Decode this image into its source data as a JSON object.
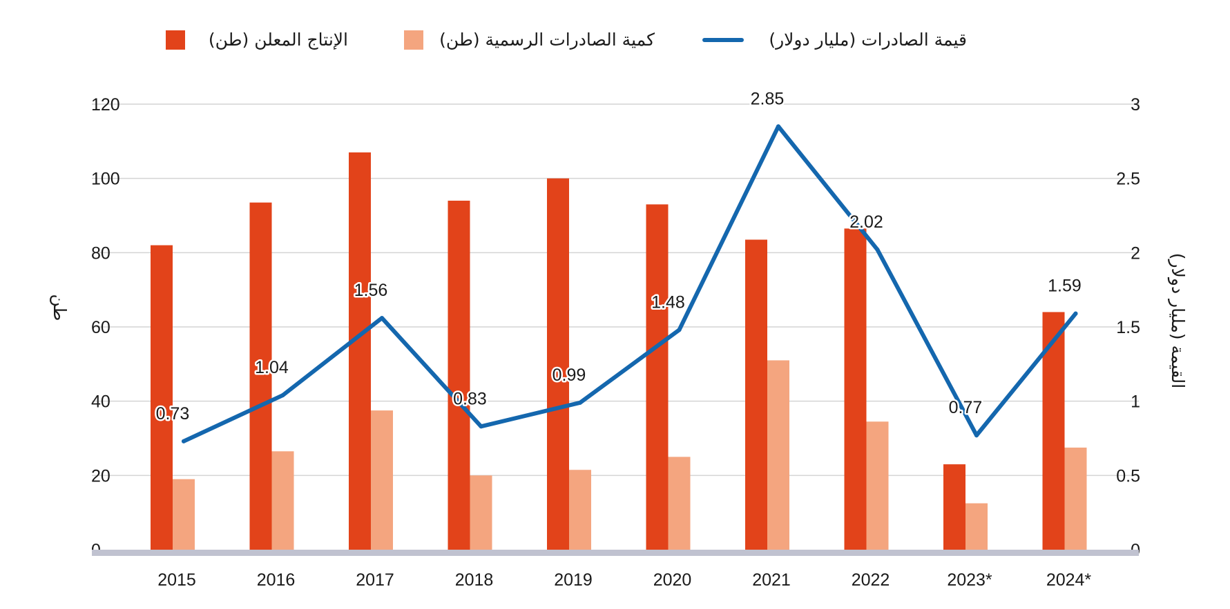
{
  "chart_data": {
    "type": "bar",
    "categories": [
      "2015",
      "2016",
      "2017",
      "2018",
      "2019",
      "2020",
      "2021",
      "2022",
      "2023*",
      "2024*"
    ],
    "series": [
      {
        "name": "الإنتاج المعلن (طن)",
        "type": "bar",
        "axis": "left",
        "color": "#e2431a",
        "values": [
          82,
          93.5,
          107,
          94,
          100,
          93,
          83.5,
          86.5,
          23,
          64
        ]
      },
      {
        "name": "كمية الصادرات الرسمية (طن)",
        "type": "bar",
        "axis": "left",
        "color": "#f4a57f",
        "values": [
          19,
          26.5,
          37.5,
          20,
          21.5,
          25,
          51,
          34.5,
          12.5,
          27.5
        ]
      },
      {
        "name": "قيمة الصادرات (مليار دولار)",
        "type": "line",
        "axis": "right",
        "color": "#1467ae",
        "values": [
          0.73,
          1.04,
          1.56,
          0.83,
          0.99,
          1.48,
          2.85,
          2.02,
          0.77,
          1.59
        ],
        "labels": [
          "0.73",
          "1.04",
          "1.56",
          "0.83",
          "0.99",
          "1.48",
          "2.85",
          "2.02",
          "0.77",
          "1.59"
        ]
      }
    ],
    "y_left": {
      "label": "طن",
      "range": [
        0,
        120
      ],
      "ticks": [
        0,
        20,
        40,
        60,
        80,
        100,
        120
      ],
      "tick_labels": [
        "0",
        "20",
        "40",
        "60",
        "80",
        "100",
        "120"
      ]
    },
    "y_right": {
      "label": "القيمة (مليار دولار)",
      "range": [
        0,
        3
      ],
      "ticks": [
        0,
        0.5,
        1,
        1.5,
        2,
        2.5,
        3
      ],
      "tick_labels": [
        "0",
        "0.5",
        "1",
        "1.5",
        "2",
        "2.5",
        "3"
      ]
    },
    "grid": true,
    "legend_position": "top"
  },
  "legend": {
    "production": "الإنتاج المعلن (طن)",
    "exports_qty": "كمية الصادرات الرسمية (طن)",
    "exports_value": "قيمة الصادرات (مليار دولار)"
  },
  "colors": {
    "production": "#e2431a",
    "exports_qty": "#f4a57f",
    "line": "#1467ae",
    "grid": "#d4d4d4",
    "baseline": "#c0c2d0"
  }
}
